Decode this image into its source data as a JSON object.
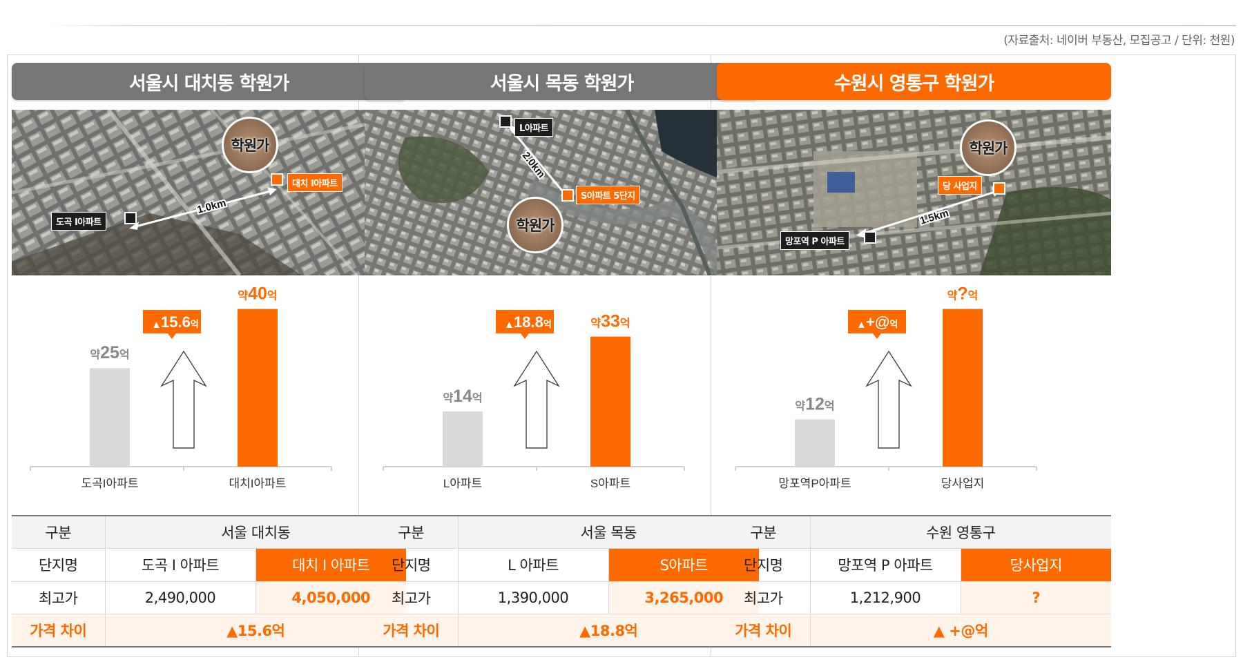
{
  "source_note": "(자료출처: 네이버 부동산, 모집공고 / 단위: 천원)",
  "colors": {
    "accent": "#ff6a00",
    "gray_bar": "#d9d9d9",
    "header_gray": "#767676"
  },
  "panels": [
    {
      "title": "서울시 대치동 학원가",
      "map": {
        "circle_label": "학원가",
        "from_label": "도곡 I아파트",
        "to_label": "대치 I아파트",
        "distance": "1.0km"
      },
      "chart_data": {
        "type": "bar",
        "categories": [
          "도곡I아파트",
          "대치I아파트"
        ],
        "values": [
          25,
          40
        ],
        "value_labels_prefix": "약",
        "value_labels_suffix": "억",
        "value_labels": [
          "25",
          "40"
        ],
        "diff_label": "15.6",
        "diff_suffix": "억",
        "ylim": [
          0,
          45
        ]
      },
      "table": {
        "h_label": "구분",
        "h_value": "서울 대치동",
        "r1_label": "단지명",
        "r1_a": "도곡 I 아파트",
        "r1_b": "대치 I 아파트",
        "r2_label": "최고가",
        "r2_a": "2,490,000",
        "r2_b": "4,050,000",
        "r3_label": "가격 차이",
        "r3_value": "▲15.6억"
      }
    },
    {
      "title": "서울시 목동 학원가",
      "map": {
        "circle_label": "학원가",
        "from_label": "L아파트",
        "to_label": "S아파트 5단지",
        "distance": "2.0km"
      },
      "chart_data": {
        "type": "bar",
        "categories": [
          "L아파트",
          "S아파트"
        ],
        "values": [
          14,
          33
        ],
        "value_labels_prefix": "약",
        "value_labels_suffix": "억",
        "value_labels": [
          "14",
          "33"
        ],
        "diff_label": "18.8",
        "diff_suffix": "억",
        "ylim": [
          0,
          45
        ]
      },
      "table": {
        "h_label": "구분",
        "h_value": "서울 목동",
        "r1_label": "단지명",
        "r1_a": "L 아파트",
        "r1_b": "S아파트",
        "r2_label": "최고가",
        "r2_a": "1,390,000",
        "r2_b": "3,265,000",
        "r3_label": "가격 차이",
        "r3_value": "▲18.8억"
      }
    },
    {
      "title": "수원시 영통구 학원가",
      "map": {
        "circle_label": "학원가",
        "from_label": "망포역 P 아파트",
        "to_label": "당 사업지",
        "distance": "1.5km"
      },
      "chart_data": {
        "type": "bar",
        "categories": [
          "망포역P아파트",
          "당사업지"
        ],
        "values": [
          12,
          40
        ],
        "value_labels_prefix": "약",
        "value_labels_suffix": "억",
        "value_labels": [
          "12",
          "?"
        ],
        "diff_label": " +@",
        "diff_suffix": "억",
        "ylim": [
          0,
          45
        ]
      },
      "table": {
        "h_label": "구분",
        "h_value": "수원 영통구",
        "r1_label": "단지명",
        "r1_a": "망포역 P 아파트",
        "r1_b": "당사업지",
        "r2_label": "최고가",
        "r2_a": "1,212,900",
        "r2_b": "?",
        "r3_label": "가격 차이",
        "r3_value": "▲ +@억"
      }
    }
  ]
}
